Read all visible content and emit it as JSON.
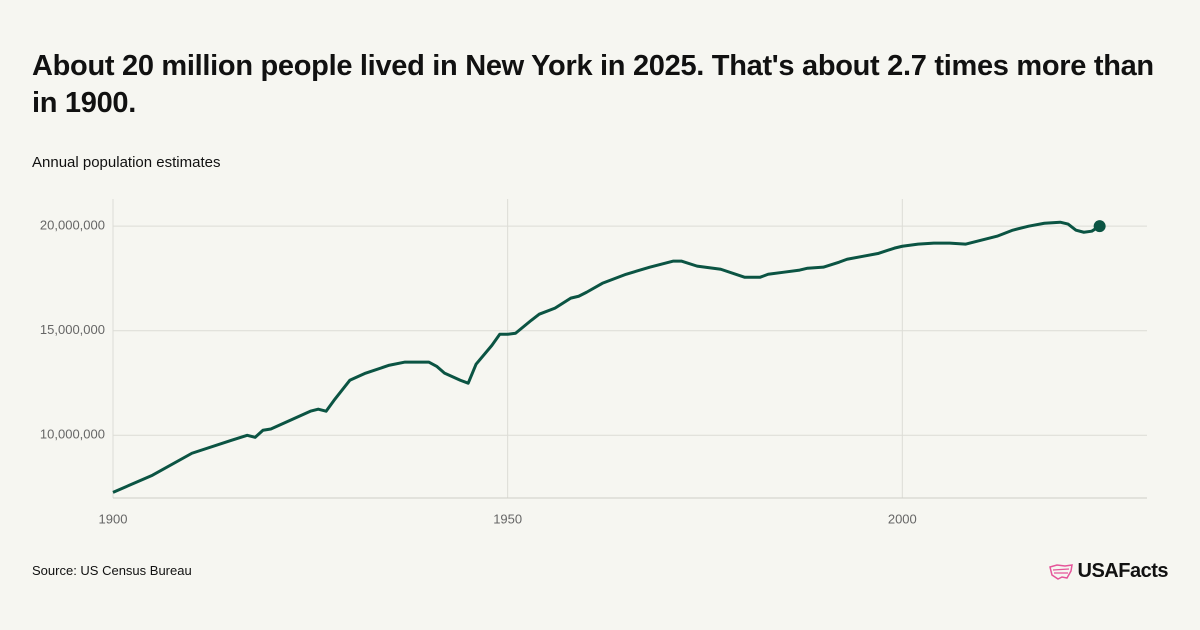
{
  "chart_data": {
    "type": "line",
    "title": "About 20 million people lived in New York in 2025. That's about 2.7 times more than in 1900.",
    "subtitle": "Annual population estimates",
    "source": "Source: US Census Bureau",
    "logo": "USAFacts",
    "x": [
      1900,
      1905,
      1910,
      1915,
      1917,
      1918,
      1919,
      1920,
      1925,
      1926,
      1927,
      1928,
      1930,
      1932,
      1935,
      1937,
      1940,
      1941,
      1942,
      1944,
      1945,
      1946,
      1948,
      1949,
      1950,
      1951,
      1953,
      1954,
      1956,
      1958,
      1959,
      1960,
      1962,
      1965,
      1968,
      1971,
      1972,
      1974,
      1977,
      1980,
      1982,
      1983,
      1985,
      1987,
      1988,
      1990,
      1992,
      1993,
      1995,
      1997,
      1999,
      2000,
      2002,
      2004,
      2006,
      2008,
      2010,
      2012,
      2014,
      2016,
      2018,
      2020,
      2021,
      2022,
      2023,
      2024,
      2025
    ],
    "series": [
      {
        "name": "Population",
        "color": "#0b5443",
        "values": [
          7270000,
          8090000,
          9140000,
          9760000,
          10000000,
          9900000,
          10240000,
          10300000,
          11150000,
          11250000,
          11150000,
          11670000,
          12630000,
          12970000,
          13350000,
          13500000,
          13500000,
          13300000,
          12970000,
          12630000,
          12490000,
          13400000,
          14300000,
          14830000,
          14830000,
          14880000,
          15500000,
          15790000,
          16080000,
          16560000,
          16650000,
          16840000,
          17270000,
          17700000,
          18040000,
          18330000,
          18330000,
          18090000,
          17940000,
          17560000,
          17560000,
          17700000,
          17800000,
          17900000,
          17990000,
          18040000,
          18280000,
          18420000,
          18560000,
          18700000,
          18950000,
          19040000,
          19140000,
          19190000,
          19190000,
          19140000,
          19330000,
          19520000,
          19810000,
          20000000,
          20140000,
          20190000,
          20100000,
          19810000,
          19710000,
          19760000,
          20000000
        ]
      }
    ],
    "xlim": [
      1900,
      2031
    ],
    "ylim": [
      7000000,
      21300000
    ],
    "xticks": [
      1900,
      1950,
      2000
    ],
    "yticks": [
      {
        "value": 10000000,
        "label": "10,000,000"
      },
      {
        "value": 15000000,
        "label": "15,000,000"
      },
      {
        "value": 20000000,
        "label": "20,000,000"
      }
    ],
    "grid": true
  }
}
